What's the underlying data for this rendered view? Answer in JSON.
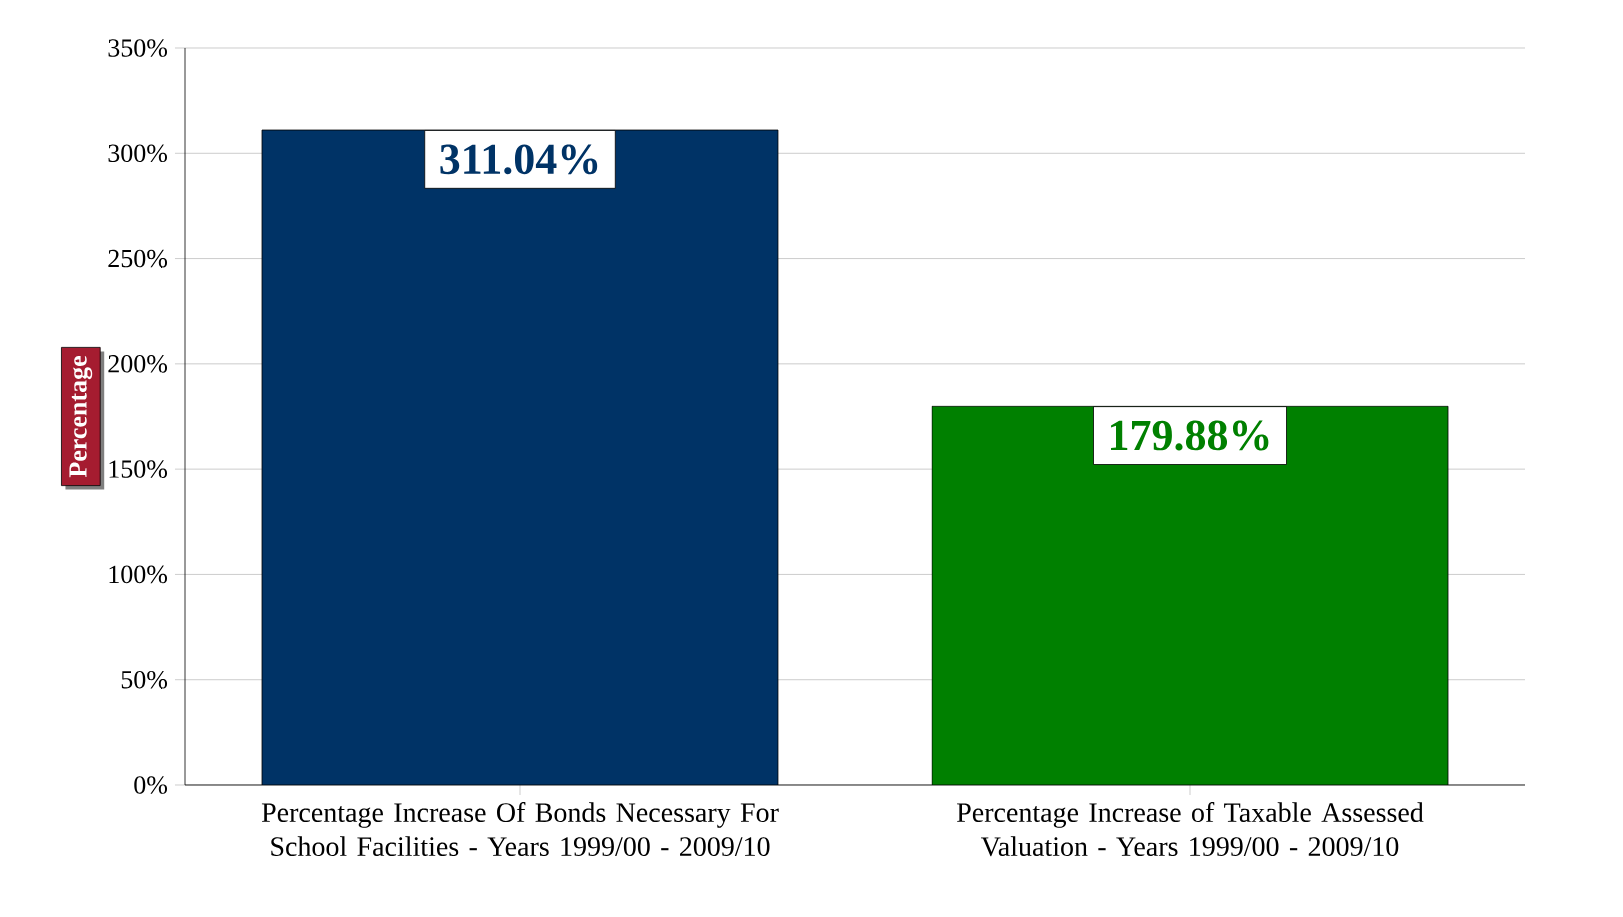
{
  "chart_data": {
    "type": "bar",
    "ylabel": "Percentage",
    "categories": [
      "Percentage Increase Of Bonds Necessary For School Facilities - Years 1999/00 - 2009/10",
      "Percentage Increase of Taxable Assessed Valuation - Years 1999/00 - 2009/10"
    ],
    "values": [
      311.04,
      179.88
    ],
    "colors": [
      "#003366",
      "#008000"
    ],
    "value_labels": [
      "311.04%",
      "179.88%"
    ],
    "ylim": [
      0,
      350
    ],
    "yticks": [
      {
        "value": 0,
        "label": "0%"
      },
      {
        "value": 50,
        "label": "50%"
      },
      {
        "value": 100,
        "label": "100%"
      },
      {
        "value": 150,
        "label": "150%"
      },
      {
        "value": 200,
        "label": "200%"
      },
      {
        "value": 250,
        "label": "250%"
      },
      {
        "value": 300,
        "label": "300%"
      },
      {
        "value": 350,
        "label": "350%"
      }
    ],
    "grid": "y"
  }
}
